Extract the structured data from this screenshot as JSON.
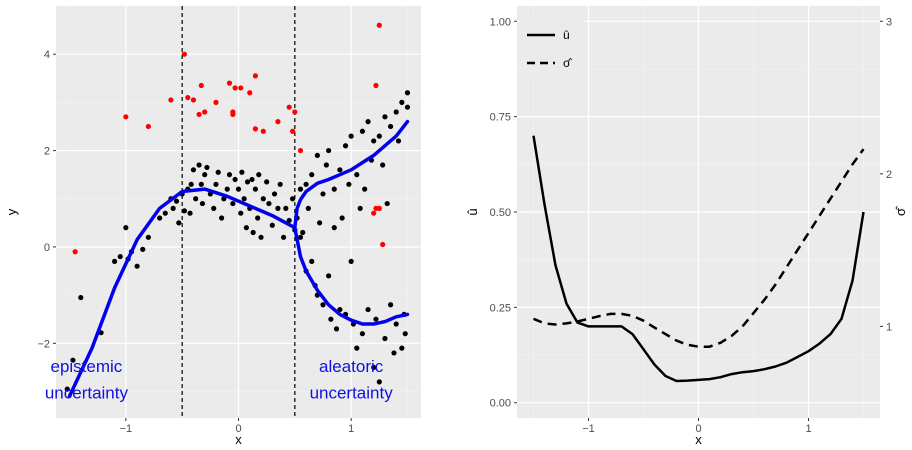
{
  "chart_data": [
    {
      "type": "scatter",
      "title": "",
      "xlabel": "x",
      "ylabel": "y",
      "xlim": [
        -1.62,
        1.62
      ],
      "ylim": [
        -3.55,
        5.0
      ],
      "xticks": [
        -1,
        0,
        1
      ],
      "yticks": [
        -2,
        0,
        2,
        4
      ],
      "xtick_labels": [
        "−1",
        "0",
        "1"
      ],
      "ytick_labels": [
        "−2",
        "0",
        "2",
        "4"
      ],
      "grid": true,
      "vlines": [
        -0.5,
        0.5
      ],
      "annotations": [
        {
          "text": "epistemic",
          "x": -1.35,
          "y": -2.6
        },
        {
          "text": "uncertainty",
          "x": -1.35,
          "y": -3.15
        },
        {
          "text": "aleatoric",
          "x": 1.0,
          "y": -2.6
        },
        {
          "text": "uncertainty",
          "x": 1.0,
          "y": -3.15
        }
      ],
      "colors": {
        "inlier": "#000000",
        "outlier": "#ff0000",
        "fit": "#0000ee",
        "vline": "#000000"
      },
      "outliers": [
        [
          -1.45,
          -0.1
        ],
        [
          -1.0,
          2.7
        ],
        [
          -0.8,
          2.5
        ],
        [
          -0.6,
          3.05
        ],
        [
          -0.48,
          4.0
        ],
        [
          -0.45,
          3.1
        ],
        [
          -0.4,
          3.05
        ],
        [
          -0.35,
          2.75
        ],
        [
          -0.33,
          3.35
        ],
        [
          -0.3,
          2.8
        ],
        [
          -0.2,
          3.0
        ],
        [
          -0.08,
          3.4
        ],
        [
          -0.05,
          2.8
        ],
        [
          -0.05,
          2.75
        ],
        [
          -0.03,
          3.3
        ],
        [
          0.02,
          3.3
        ],
        [
          0.1,
          3.2
        ],
        [
          0.15,
          3.55
        ],
        [
          0.15,
          2.45
        ],
        [
          0.22,
          2.4
        ],
        [
          0.35,
          2.6
        ],
        [
          0.45,
          2.9
        ],
        [
          0.5,
          2.8
        ],
        [
          0.48,
          2.4
        ],
        [
          0.55,
          2.0
        ],
        [
          1.2,
          0.7
        ],
        [
          1.22,
          0.8
        ],
        [
          1.25,
          0.8
        ],
        [
          1.28,
          0.05
        ],
        [
          1.22,
          3.35
        ],
        [
          1.25,
          4.6
        ]
      ],
      "inliers": [
        [
          -1.52,
          -2.95
        ],
        [
          -1.47,
          -2.35
        ],
        [
          -1.4,
          -1.05
        ],
        [
          -1.22,
          -1.78
        ],
        [
          -1.1,
          -0.3
        ],
        [
          -1.05,
          -0.2
        ],
        [
          -1.0,
          0.4
        ],
        [
          -0.98,
          -0.25
        ],
        [
          -0.95,
          -0.1
        ],
        [
          -0.9,
          -0.4
        ],
        [
          -0.85,
          -0.05
        ],
        [
          -0.8,
          0.2
        ],
        [
          -0.7,
          0.6
        ],
        [
          -0.65,
          0.7
        ],
        [
          -0.6,
          1.0
        ],
        [
          -0.58,
          0.8
        ],
        [
          -0.55,
          0.95
        ],
        [
          -0.53,
          0.5
        ],
        [
          -0.5,
          1.1
        ],
        [
          -0.48,
          0.75
        ],
        [
          -0.45,
          1.2
        ],
        [
          -0.43,
          0.7
        ],
        [
          -0.42,
          1.3
        ],
        [
          -0.4,
          1.6
        ],
        [
          -0.38,
          1.0
        ],
        [
          -0.35,
          1.7
        ],
        [
          -0.33,
          1.3
        ],
        [
          -0.32,
          0.9
        ],
        [
          -0.3,
          1.5
        ],
        [
          -0.28,
          1.65
        ],
        [
          -0.25,
          1.1
        ],
        [
          -0.22,
          0.8
        ],
        [
          -0.2,
          1.3
        ],
        [
          -0.18,
          1.55
        ],
        [
          -0.15,
          0.6
        ],
        [
          -0.13,
          1.0
        ],
        [
          -0.1,
          1.2
        ],
        [
          -0.08,
          1.5
        ],
        [
          -0.05,
          0.9
        ],
        [
          -0.03,
          1.4
        ],
        [
          0.0,
          1.2
        ],
        [
          0.02,
          0.7
        ],
        [
          0.03,
          1.55
        ],
        [
          0.05,
          1.0
        ],
        [
          0.07,
          0.4
        ],
        [
          0.08,
          1.35
        ],
        [
          0.1,
          0.8
        ],
        [
          0.12,
          1.4
        ],
        [
          0.13,
          0.3
        ],
        [
          0.15,
          1.2
        ],
        [
          0.17,
          0.6
        ],
        [
          0.18,
          1.5
        ],
        [
          0.2,
          0.2
        ],
        [
          0.22,
          1.0
        ],
        [
          0.25,
          1.35
        ],
        [
          0.27,
          0.9
        ],
        [
          0.3,
          0.45
        ],
        [
          0.32,
          1.1
        ],
        [
          0.35,
          0.8
        ],
        [
          0.37,
          1.3
        ],
        [
          0.4,
          0.2
        ],
        [
          0.42,
          0.8
        ],
        [
          0.45,
          0.55
        ],
        [
          0.48,
          1.0
        ],
        [
          0.5,
          0.35
        ],
        [
          0.52,
          0.6
        ],
        [
          0.55,
          0.2
        ],
        [
          0.55,
          1.2
        ],
        [
          0.57,
          0.3
        ],
        [
          0.6,
          1.3
        ],
        [
          0.6,
          -0.5
        ],
        [
          0.62,
          0.8
        ],
        [
          0.65,
          -0.3
        ],
        [
          0.65,
          1.5
        ],
        [
          0.68,
          -0.8
        ],
        [
          0.7,
          1.9
        ],
        [
          0.7,
          -1.0
        ],
        [
          0.72,
          0.5
        ],
        [
          0.75,
          1.1
        ],
        [
          0.75,
          -1.2
        ],
        [
          0.78,
          1.7
        ],
        [
          0.8,
          -0.6
        ],
        [
          0.8,
          2.0
        ],
        [
          0.82,
          -1.5
        ],
        [
          0.85,
          0.4
        ],
        [
          0.85,
          1.2
        ],
        [
          0.87,
          -1.7
        ],
        [
          0.9,
          1.6
        ],
        [
          0.9,
          -1.3
        ],
        [
          0.92,
          0.6
        ],
        [
          0.95,
          2.1
        ],
        [
          0.95,
          -1.4
        ],
        [
          0.98,
          1.3
        ],
        [
          1.0,
          -0.3
        ],
        [
          1.0,
          2.3
        ],
        [
          1.02,
          -1.6
        ],
        [
          1.05,
          1.5
        ],
        [
          1.05,
          -2.1
        ],
        [
          1.08,
          0.8
        ],
        [
          1.1,
          2.4
        ],
        [
          1.1,
          -1.8
        ],
        [
          1.12,
          1.2
        ],
        [
          1.15,
          -1.3
        ],
        [
          1.15,
          2.6
        ],
        [
          1.18,
          1.8
        ],
        [
          1.2,
          -2.5
        ],
        [
          1.2,
          2.2
        ],
        [
          1.22,
          -1.5
        ],
        [
          1.25,
          2.3
        ],
        [
          1.25,
          -2.8
        ],
        [
          1.28,
          1.7
        ],
        [
          1.3,
          -1.9
        ],
        [
          1.3,
          2.7
        ],
        [
          1.32,
          0.9
        ],
        [
          1.35,
          -1.2
        ],
        [
          1.35,
          2.5
        ],
        [
          1.38,
          -2.2
        ],
        [
          1.4,
          2.8
        ],
        [
          1.4,
          -1.6
        ],
        [
          1.42,
          2.2
        ],
        [
          1.45,
          -2.1
        ],
        [
          1.45,
          3.0
        ],
        [
          1.47,
          -1.4
        ],
        [
          1.5,
          3.2
        ],
        [
          1.5,
          2.9
        ],
        [
          1.48,
          -1.8
        ]
      ],
      "fit_lines": [
        {
          "x": [
            -1.5,
            -1.3,
            -1.1,
            -0.9,
            -0.7,
            -0.5,
            -0.3,
            -0.1,
            0.1,
            0.3,
            0.5
          ],
          "y": [
            -3.1,
            -2.1,
            -0.85,
            0.15,
            0.8,
            1.15,
            1.2,
            1.05,
            0.85,
            0.65,
            0.4
          ]
        },
        {
          "x": [
            0.5,
            0.52,
            0.55,
            0.6,
            0.7,
            0.8,
            0.9,
            1.0,
            1.1,
            1.2,
            1.3,
            1.4,
            1.5
          ],
          "y": [
            0.4,
            0.8,
            0.98,
            1.15,
            1.32,
            1.4,
            1.5,
            1.6,
            1.75,
            1.9,
            2.1,
            2.3,
            2.6
          ]
        },
        {
          "x": [
            0.5,
            0.55,
            0.6,
            0.7,
            0.8,
            0.9,
            1.0,
            1.1,
            1.2,
            1.3,
            1.4,
            1.5
          ],
          "y": [
            0.4,
            -0.2,
            -0.5,
            -0.9,
            -1.2,
            -1.4,
            -1.52,
            -1.6,
            -1.6,
            -1.55,
            -1.45,
            -1.4
          ]
        }
      ]
    },
    {
      "type": "line",
      "title": "",
      "xlabel": "x",
      "ylabel": "û",
      "y2label": "σ̂",
      "xlim": [
        -1.65,
        1.65
      ],
      "ylim": [
        -0.04,
        1.04
      ],
      "xticks": [
        -1,
        0,
        1
      ],
      "xtick_labels": [
        "−1",
        "0",
        "1"
      ],
      "yticks": [
        0.0,
        0.25,
        0.5,
        0.75,
        1.0
      ],
      "ytick_labels": [
        "0.00",
        "0.25",
        "0.50",
        "0.75",
        "1.00"
      ],
      "y2_ticks": [
        {
          "value": 1,
          "label": "1",
          "at": 0.2
        },
        {
          "value": 2,
          "label": "2",
          "at": 0.6
        },
        {
          "value": 3,
          "label": "3",
          "at": 1.0
        }
      ],
      "grid": true,
      "legend": {
        "position": "top-left",
        "entries": [
          {
            "label": "û",
            "style": "solid"
          },
          {
            "label": "σ̂",
            "style": "dashed"
          }
        ]
      },
      "series": [
        {
          "name": "û",
          "style": "solid",
          "x": [
            -1.5,
            -1.4,
            -1.3,
            -1.2,
            -1.1,
            -1.0,
            -0.9,
            -0.8,
            -0.7,
            -0.6,
            -0.5,
            -0.4,
            -0.3,
            -0.2,
            -0.1,
            0.0,
            0.1,
            0.2,
            0.3,
            0.4,
            0.5,
            0.6,
            0.7,
            0.8,
            0.9,
            1.0,
            1.1,
            1.2,
            1.3,
            1.4,
            1.5
          ],
          "y": [
            0.7,
            0.52,
            0.36,
            0.26,
            0.21,
            0.2,
            0.2,
            0.2,
            0.2,
            0.18,
            0.14,
            0.1,
            0.07,
            0.057,
            0.058,
            0.06,
            0.062,
            0.067,
            0.075,
            0.08,
            0.083,
            0.088,
            0.095,
            0.105,
            0.12,
            0.135,
            0.155,
            0.18,
            0.22,
            0.32,
            0.5
          ]
        },
        {
          "name": "σ̂",
          "style": "dashed",
          "x": [
            -1.5,
            -1.4,
            -1.3,
            -1.2,
            -1.1,
            -1.0,
            -0.9,
            -0.8,
            -0.7,
            -0.6,
            -0.5,
            -0.4,
            -0.3,
            -0.2,
            -0.1,
            0.0,
            0.1,
            0.2,
            0.3,
            0.4,
            0.5,
            0.6,
            0.7,
            0.8,
            0.9,
            1.0,
            1.1,
            1.2,
            1.3,
            1.4,
            1.5
          ],
          "y": [
            0.22,
            0.208,
            0.205,
            0.208,
            0.213,
            0.22,
            0.227,
            0.233,
            0.233,
            0.228,
            0.215,
            0.197,
            0.18,
            0.163,
            0.152,
            0.147,
            0.147,
            0.157,
            0.175,
            0.2,
            0.235,
            0.27,
            0.31,
            0.355,
            0.4,
            0.445,
            0.49,
            0.535,
            0.58,
            0.625,
            0.665
          ]
        }
      ]
    }
  ]
}
